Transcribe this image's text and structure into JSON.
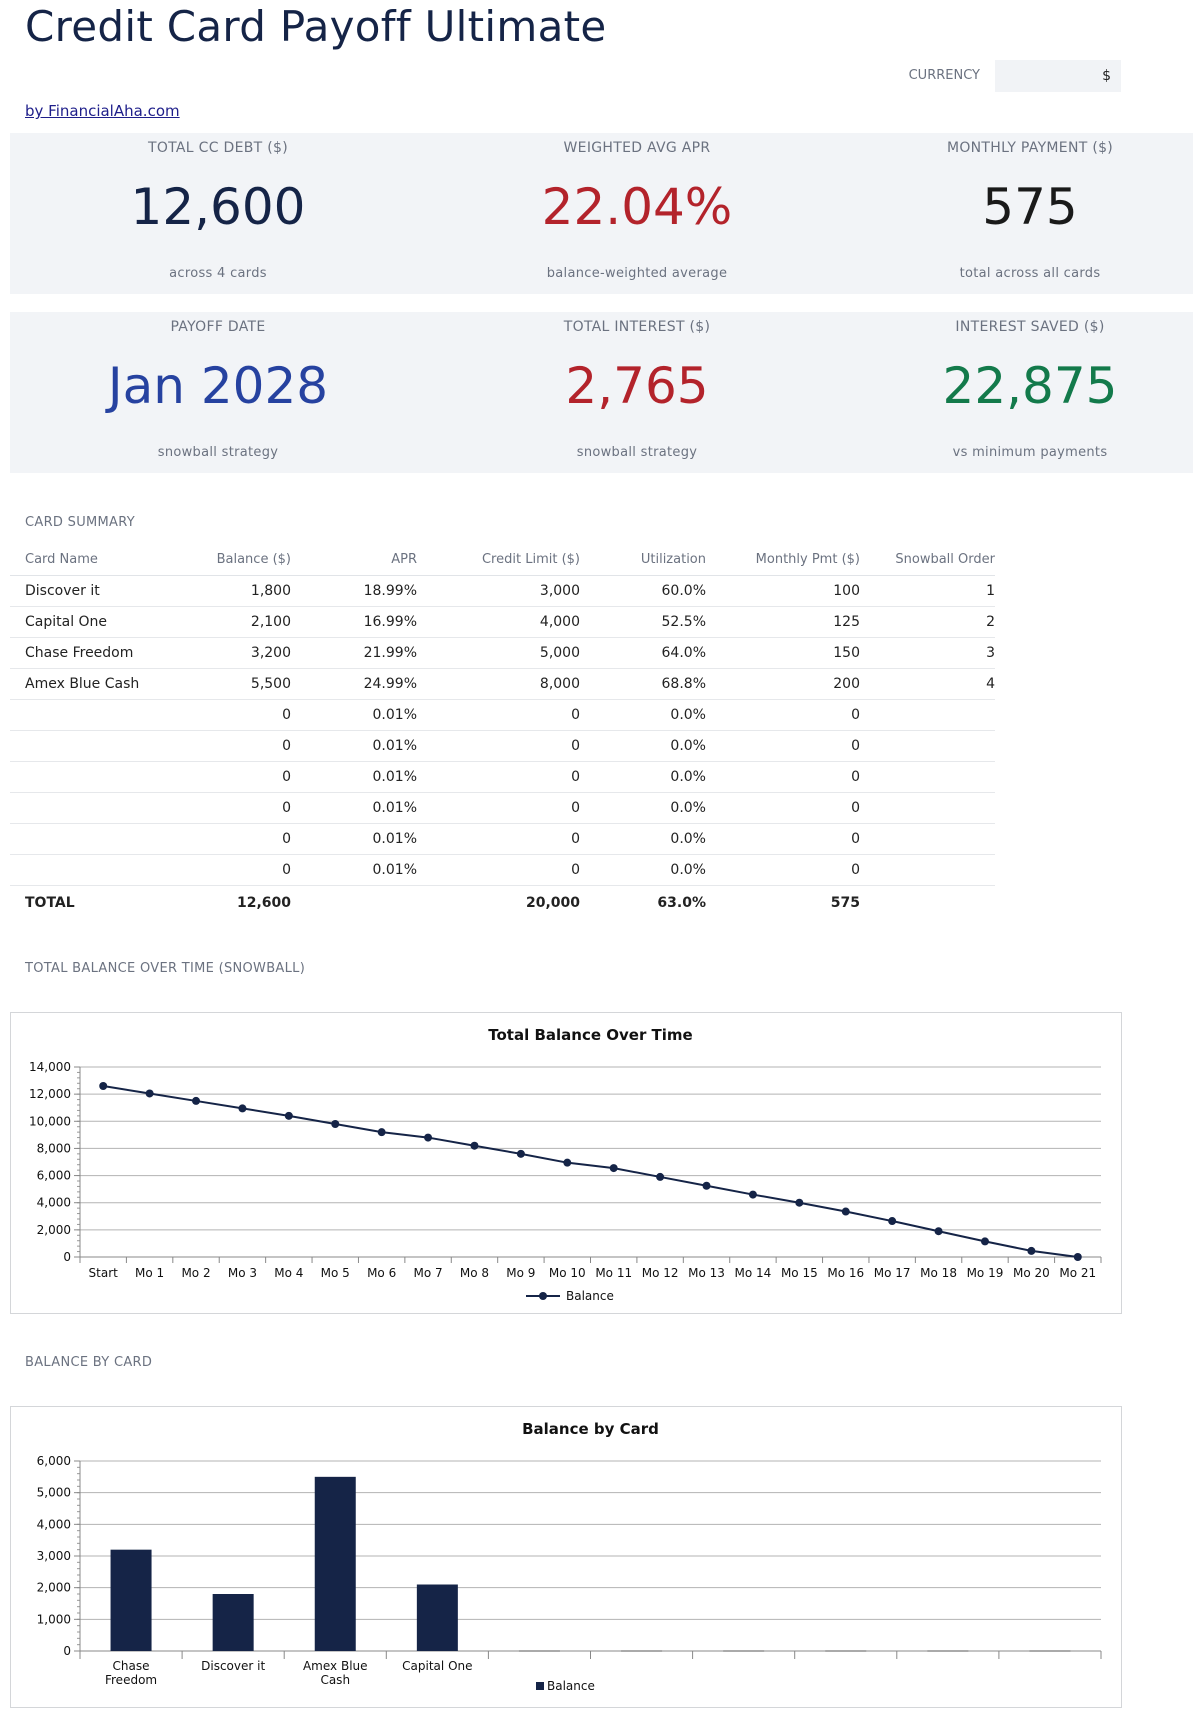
{
  "app": {
    "title": "Credit Card Payoff Ultimate",
    "byline": "by FinancialAha.com"
  },
  "currency": {
    "label": "CURRENCY",
    "value": "$"
  },
  "kpis_row1": [
    {
      "label": "TOTAL CC DEBT ($)",
      "value": "12,600",
      "note": "across 4 cards",
      "color": "#152447"
    },
    {
      "label": "WEIGHTED AVG APR",
      "value": "22.04%",
      "note": "balance-weighted average",
      "color": "#b3232b"
    },
    {
      "label": "MONTHLY PAYMENT ($)",
      "value": "575",
      "note": "total across all cards",
      "color": "#1a1a1a"
    }
  ],
  "kpis_row2": [
    {
      "label": "PAYOFF DATE",
      "value": "Jan 2028",
      "note": "snowball strategy",
      "color": "#2642a0"
    },
    {
      "label": "TOTAL INTEREST ($)",
      "value": "2,765",
      "note": "snowball strategy",
      "color": "#b3232b"
    },
    {
      "label": "INTEREST SAVED ($)",
      "value": "22,875",
      "note": "vs minimum payments",
      "color": "#137a4b"
    }
  ],
  "card_summary": {
    "section_label": "CARD SUMMARY",
    "headers": [
      "Card Name",
      "Balance ($)",
      "APR",
      "Credit Limit ($)",
      "Utilization",
      "Monthly Pmt ($)",
      "Snowball Order"
    ],
    "rows": [
      [
        "Discover it",
        "1,800",
        "18.99%",
        "3,000",
        "60.0%",
        "100",
        "1"
      ],
      [
        "Capital One",
        "2,100",
        "16.99%",
        "4,000",
        "52.5%",
        "125",
        "2"
      ],
      [
        "Chase Freedom",
        "3,200",
        "21.99%",
        "5,000",
        "64.0%",
        "150",
        "3"
      ],
      [
        "Amex Blue Cash",
        "5,500",
        "24.99%",
        "8,000",
        "68.8%",
        "200",
        "4"
      ],
      [
        "",
        "0",
        "0.01%",
        "0",
        "0.0%",
        "0",
        ""
      ],
      [
        "",
        "0",
        "0.01%",
        "0",
        "0.0%",
        "0",
        ""
      ],
      [
        "",
        "0",
        "0.01%",
        "0",
        "0.0%",
        "0",
        ""
      ],
      [
        "",
        "0",
        "0.01%",
        "0",
        "0.0%",
        "0",
        ""
      ],
      [
        "",
        "0",
        "0.01%",
        "0",
        "0.0%",
        "0",
        ""
      ],
      [
        "",
        "0",
        "0.01%",
        "0",
        "0.0%",
        "0",
        ""
      ]
    ],
    "total": [
      "TOTAL",
      "12,600",
      "",
      "20,000",
      "63.0%",
      "575",
      ""
    ]
  },
  "line_section_label": "TOTAL BALANCE OVER TIME (SNOWBALL)",
  "bar_section_label": "BALANCE BY CARD",
  "chart_data": [
    {
      "type": "line",
      "title": "Total Balance Over Time",
      "xlabel": "",
      "ylabel": "",
      "categories": [
        "Start",
        "Mo 1",
        "Mo 2",
        "Mo 3",
        "Mo 4",
        "Mo 5",
        "Mo 6",
        "Mo 7",
        "Mo 8",
        "Mo 9",
        "Mo 10",
        "Mo 11",
        "Mo 12",
        "Mo 13",
        "Mo 14",
        "Mo 15",
        "Mo 16",
        "Mo 17",
        "Mo 18",
        "Mo 19",
        "Mo 20",
        "Mo 21"
      ],
      "series": [
        {
          "name": "Balance",
          "values": [
            12600,
            12050,
            11500,
            10950,
            10400,
            9800,
            9200,
            8800,
            8200,
            7600,
            6950,
            6550,
            5900,
            5250,
            4600,
            4000,
            3350,
            2650,
            1900,
            1150,
            450,
            0
          ]
        }
      ],
      "ylim": [
        0,
        14000
      ],
      "yticks": [
        "0",
        "2,000",
        "4,000",
        "6,000",
        "8,000",
        "10,000",
        "12,000",
        "14,000"
      ],
      "grid": true,
      "legend": "bottom",
      "color": "#152447"
    },
    {
      "type": "bar",
      "title": "Balance by Card",
      "xlabel": "",
      "ylabel": "",
      "categories": [
        [
          "Chase",
          "Freedom"
        ],
        [
          "Discover it"
        ],
        [
          "Amex Blue",
          "Cash"
        ],
        [
          "Capital One"
        ],
        [
          ""
        ],
        [
          ""
        ],
        [
          ""
        ],
        [
          ""
        ],
        [
          ""
        ],
        [
          ""
        ]
      ],
      "series": [
        {
          "name": "Balance",
          "values": [
            3200,
            1800,
            5500,
            2100,
            0,
            0,
            0,
            0,
            0,
            0
          ]
        }
      ],
      "ylim": [
        0,
        6000
      ],
      "yticks": [
        "0",
        "1,000",
        "2,000",
        "3,000",
        "4,000",
        "5,000",
        "6,000"
      ],
      "grid": true,
      "legend": "bottom",
      "color": "#152447"
    }
  ]
}
